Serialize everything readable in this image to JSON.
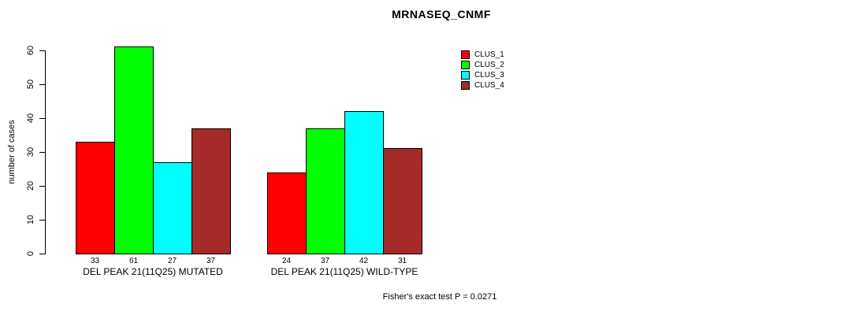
{
  "chart_data": {
    "type": "bar",
    "title": "MRNASEQ_CNMF",
    "xlabel": "",
    "ylabel": "number of cases",
    "ylim": [
      0,
      60
    ],
    "yticks": [
      0,
      10,
      20,
      30,
      40,
      50,
      60
    ],
    "grid": false,
    "bar_outline_color": "#000000",
    "background_color": "#ffffff",
    "categories": [
      "DEL PEAK 21(11Q25) MUTATED",
      "DEL PEAK 21(11Q25) WILD-TYPE"
    ],
    "series": [
      {
        "name": "CLUS_1",
        "color": "#ff0000",
        "values": [
          33,
          24
        ]
      },
      {
        "name": "CLUS_2",
        "color": "#00ff00",
        "values": [
          61,
          37
        ]
      },
      {
        "name": "CLUS_3",
        "color": "#00ffff",
        "values": [
          27,
          42
        ]
      },
      {
        "name": "CLUS_4",
        "color": "#a52a2a",
        "values": [
          37,
          31
        ]
      }
    ],
    "bar_value_labels": [
      [
        33,
        61,
        27,
        37
      ],
      [
        24,
        37,
        42,
        31
      ]
    ],
    "legend": {
      "position": "top-right",
      "entries": [
        "CLUS_1",
        "CLUS_2",
        "CLUS_3",
        "CLUS_4"
      ]
    },
    "annotation": "Fisher's exact test P = 0.0271"
  }
}
